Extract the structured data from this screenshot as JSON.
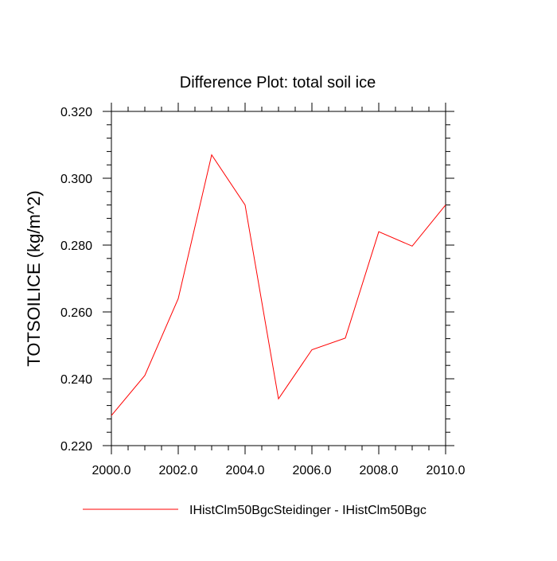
{
  "chart_data": {
    "type": "line",
    "title": "Difference Plot: total soil ice",
    "xlabel": "",
    "ylabel": "TOTSOILICE  (kg/m^2)",
    "xlim": [
      2000,
      2010
    ],
    "ylim": [
      0.22,
      0.32
    ],
    "x_ticks": [
      2000,
      2002,
      2004,
      2006,
      2008,
      2010
    ],
    "x_tick_labels": [
      "2000.0",
      "2002.0",
      "2004.0",
      "2006.0",
      "2008.0",
      "2010.0"
    ],
    "y_ticks": [
      0.22,
      0.24,
      0.26,
      0.28,
      0.3,
      0.32
    ],
    "y_tick_labels": [
      "0.220",
      "0.240",
      "0.260",
      "0.280",
      "0.300",
      "0.320"
    ],
    "grid": false,
    "legend_position": "bottom",
    "series": [
      {
        "name": "IHistClm50BgcSteidinger - IHistClm50Bgc",
        "color": "#ff0000",
        "x": [
          2000,
          2001,
          2002,
          2003,
          2004,
          2005,
          2006,
          2007,
          2008,
          2009,
          2010
        ],
        "y": [
          0.229,
          0.241,
          0.264,
          0.307,
          0.292,
          0.234,
          0.2487,
          0.2522,
          0.284,
          0.2797,
          0.292
        ]
      }
    ]
  }
}
